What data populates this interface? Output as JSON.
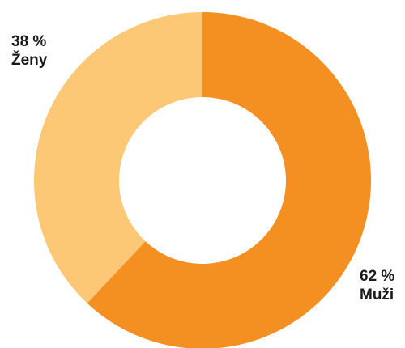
{
  "chart_data": {
    "type": "pie",
    "donut": true,
    "title": "",
    "start_angle_deg": 0,
    "direction": "clockwise",
    "slices": [
      {
        "category": "Muži",
        "value": 62,
        "value_label": "62 %",
        "color": "#f48f22"
      },
      {
        "category": "Ženy",
        "value": 38,
        "value_label": "38 %",
        "color": "#fdc876"
      }
    ]
  }
}
